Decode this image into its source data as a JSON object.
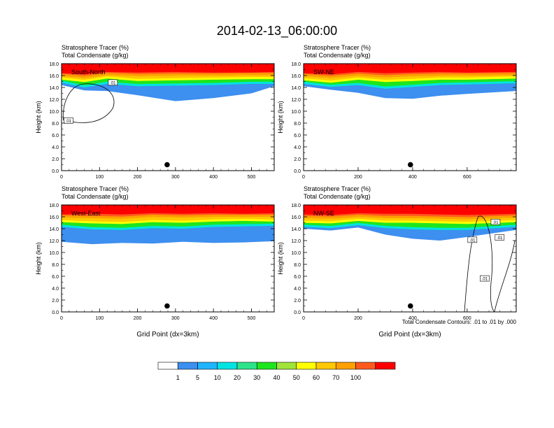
{
  "title": "2014-02-13_06:00:00",
  "footnote": "Total Condensate Contours: .01 to .01 by .000",
  "colorbar": {
    "labels": [
      "1",
      "5",
      "10",
      "20",
      "30",
      "40",
      "50",
      "60",
      "70",
      "100"
    ],
    "colors": [
      "#ffffff",
      "#3d8ff0",
      "#1fb4ff",
      "#00e3e3",
      "#2ee48b",
      "#1ee61e",
      "#a0e43a",
      "#ffff00",
      "#ffc800",
      "#ffa000",
      "#ff5a1e",
      "#ff0000"
    ]
  },
  "chart_data": [
    {
      "type": "heatmap",
      "title": "Stratosphere Tracer   (%)",
      "subtitle": "Total Condensate   (g/kg)",
      "panel_label": "South-North",
      "ylabel": "Height (km)",
      "xlabel": "",
      "xlim": [
        0,
        560
      ],
      "ylim": [
        0,
        18
      ],
      "xticks": [
        "0",
        "100",
        "200",
        "300",
        "400",
        "500"
      ],
      "xtick_values": [
        0,
        100,
        200,
        300,
        400,
        500
      ],
      "yticks": [
        "0.0",
        "2.0",
        "4.0",
        "6.0",
        "8.0",
        "10.0",
        "12.0",
        "14.0",
        "16.0",
        "18.0"
      ],
      "contour_labels": [
        ".01",
        ".01"
      ],
      "marker": {
        "x": 278,
        "y": 1.0
      },
      "tracer_bands": [
        {
          "level": "100",
          "x": [
            0,
            60,
            120,
            200,
            300,
            400,
            500,
            560
          ],
          "y": [
            16.4,
            16.2,
            16.6,
            16.5,
            16.6,
            16.5,
            16.5,
            16.6
          ]
        },
        {
          "level": "70",
          "x": [
            0,
            60,
            120,
            200,
            300,
            400,
            500,
            560
          ],
          "y": [
            15.9,
            15.6,
            16.1,
            15.9,
            16.0,
            16.0,
            16.1,
            16.1
          ]
        },
        {
          "level": "50",
          "x": [
            0,
            60,
            120,
            200,
            300,
            400,
            500,
            560
          ],
          "y": [
            15.3,
            14.9,
            15.5,
            15.1,
            15.2,
            15.3,
            15.4,
            15.4
          ]
        },
        {
          "level": "20",
          "x": [
            0,
            60,
            120,
            200,
            300,
            400,
            500,
            560
          ],
          "y": [
            14.8,
            14.0,
            14.6,
            14.2,
            14.3,
            14.4,
            14.6,
            14.6
          ]
        },
        {
          "level": "5",
          "x": [
            0,
            60,
            120,
            200,
            300,
            400,
            500,
            560
          ],
          "y": [
            14.4,
            13.5,
            13.4,
            12.7,
            11.7,
            12.2,
            13.0,
            14.2
          ]
        }
      ]
    },
    {
      "type": "heatmap",
      "title": "Stratosphere Tracer   (%)",
      "subtitle": "Total Condensate   (g/kg)",
      "panel_label": "SW-NE",
      "ylabel": "Height (km)",
      "xlabel": "",
      "xlim": [
        0,
        780
      ],
      "ylim": [
        0,
        18
      ],
      "xticks": [
        "0",
        "200",
        "400",
        "600"
      ],
      "xtick_values": [
        0,
        200,
        400,
        600
      ],
      "yticks": [
        "0.0",
        "2.0",
        "4.0",
        "6.0",
        "8.0",
        "10.0",
        "12.0",
        "14.0",
        "16.0",
        "18.0"
      ],
      "contour_labels": [],
      "marker": {
        "x": 392,
        "y": 1.0
      },
      "tracer_bands": [
        {
          "level": "100",
          "x": [
            0,
            100,
            200,
            300,
            400,
            500,
            600,
            780
          ],
          "y": [
            16.4,
            16.2,
            16.6,
            16.4,
            16.5,
            16.6,
            16.5,
            16.6
          ]
        },
        {
          "level": "70",
          "x": [
            0,
            100,
            200,
            300,
            400,
            500,
            600,
            780
          ],
          "y": [
            15.9,
            15.6,
            16.0,
            15.7,
            15.9,
            16.0,
            16.0,
            16.1
          ]
        },
        {
          "level": "50",
          "x": [
            0,
            100,
            200,
            300,
            400,
            500,
            600,
            780
          ],
          "y": [
            15.2,
            14.8,
            15.3,
            14.9,
            15.1,
            15.3,
            15.3,
            15.5
          ]
        },
        {
          "level": "20",
          "x": [
            0,
            100,
            200,
            300,
            400,
            500,
            600,
            780
          ],
          "y": [
            14.6,
            14.1,
            14.4,
            13.8,
            14.1,
            14.4,
            14.5,
            14.7
          ]
        },
        {
          "level": "5",
          "x": [
            0,
            100,
            200,
            300,
            400,
            500,
            600,
            780
          ],
          "y": [
            14.2,
            13.6,
            13.1,
            12.2,
            12.1,
            12.6,
            12.9,
            13.4
          ]
        }
      ]
    },
    {
      "type": "heatmap",
      "title": "Stratosphere Tracer   (%)",
      "subtitle": "Total Condensate   (g/kg)",
      "panel_label": "West-East",
      "ylabel": "Height (km)",
      "xlabel": "Grid Point (dx=3km)",
      "xlim": [
        0,
        560
      ],
      "ylim": [
        0,
        18
      ],
      "xticks": [
        "0",
        "100",
        "200",
        "300",
        "400",
        "500"
      ],
      "xtick_values": [
        0,
        100,
        200,
        300,
        400,
        500
      ],
      "yticks": [
        "0.0",
        "2.0",
        "4.0",
        "6.0",
        "8.0",
        "10.0",
        "12.0",
        "14.0",
        "16.0",
        "18.0"
      ],
      "contour_labels": [],
      "marker": {
        "x": 278,
        "y": 1.0
      },
      "tracer_bands": [
        {
          "level": "100",
          "x": [
            0,
            80,
            160,
            240,
            320,
            400,
            480,
            560
          ],
          "y": [
            16.4,
            16.5,
            16.4,
            16.6,
            16.5,
            16.6,
            16.5,
            16.6
          ]
        },
        {
          "level": "70",
          "x": [
            0,
            80,
            160,
            240,
            320,
            400,
            480,
            560
          ],
          "y": [
            15.9,
            15.8,
            15.7,
            16.0,
            15.9,
            16.0,
            16.0,
            16.0
          ]
        },
        {
          "level": "50",
          "x": [
            0,
            80,
            160,
            240,
            320,
            400,
            480,
            560
          ],
          "y": [
            15.1,
            14.9,
            14.8,
            15.1,
            15.0,
            15.2,
            15.3,
            15.2
          ]
        },
        {
          "level": "20",
          "x": [
            0,
            80,
            160,
            240,
            320,
            400,
            480,
            560
          ],
          "y": [
            14.3,
            13.9,
            13.8,
            14.1,
            14.0,
            14.3,
            14.4,
            14.5
          ]
        },
        {
          "level": "5",
          "x": [
            0,
            80,
            160,
            240,
            320,
            400,
            480,
            560
          ],
          "y": [
            11.8,
            11.4,
            11.6,
            11.5,
            11.8,
            11.6,
            11.7,
            11.9
          ]
        }
      ]
    },
    {
      "type": "heatmap",
      "title": "Stratosphere Tracer   (%)",
      "subtitle": "Total Condensate   (g/kg)",
      "panel_label": "NW-SE",
      "ylabel": "Height (km)",
      "xlabel": "Grid Point (dx=3km)",
      "xlim": [
        0,
        780
      ],
      "ylim": [
        0,
        18
      ],
      "xticks": [
        "0",
        "200",
        "400",
        "600"
      ],
      "xtick_values": [
        0,
        200,
        400,
        600
      ],
      "yticks": [
        "0.0",
        "2.0",
        "4.0",
        "6.0",
        "8.0",
        "10.0",
        "12.0",
        "14.0",
        "16.0",
        "18.0"
      ],
      "contour_labels": [
        ".01",
        ".01",
        ".01",
        ".01"
      ],
      "marker": {
        "x": 392,
        "y": 1.0
      },
      "tracer_bands": [
        {
          "level": "100",
          "x": [
            0,
            100,
            200,
            300,
            400,
            500,
            600,
            780
          ],
          "y": [
            16.4,
            16.3,
            16.6,
            16.5,
            16.5,
            16.4,
            16.3,
            16.5
          ]
        },
        {
          "level": "70",
          "x": [
            0,
            100,
            200,
            300,
            400,
            500,
            600,
            780
          ],
          "y": [
            15.8,
            15.7,
            16.0,
            15.8,
            15.8,
            15.7,
            15.6,
            15.9
          ]
        },
        {
          "level": "50",
          "x": [
            0,
            100,
            200,
            300,
            400,
            500,
            600,
            780
          ],
          "y": [
            15.0,
            14.9,
            15.3,
            15.0,
            15.0,
            14.9,
            14.8,
            15.1
          ]
        },
        {
          "level": "20",
          "x": [
            0,
            100,
            200,
            300,
            400,
            500,
            600,
            780
          ],
          "y": [
            14.3,
            14.1,
            14.6,
            14.1,
            13.9,
            13.8,
            13.8,
            14.3
          ]
        },
        {
          "level": "5",
          "x": [
            0,
            100,
            200,
            300,
            400,
            500,
            600,
            780
          ],
          "y": [
            14.0,
            13.7,
            14.2,
            13.0,
            12.3,
            12.0,
            12.6,
            13.8
          ]
        }
      ]
    }
  ]
}
